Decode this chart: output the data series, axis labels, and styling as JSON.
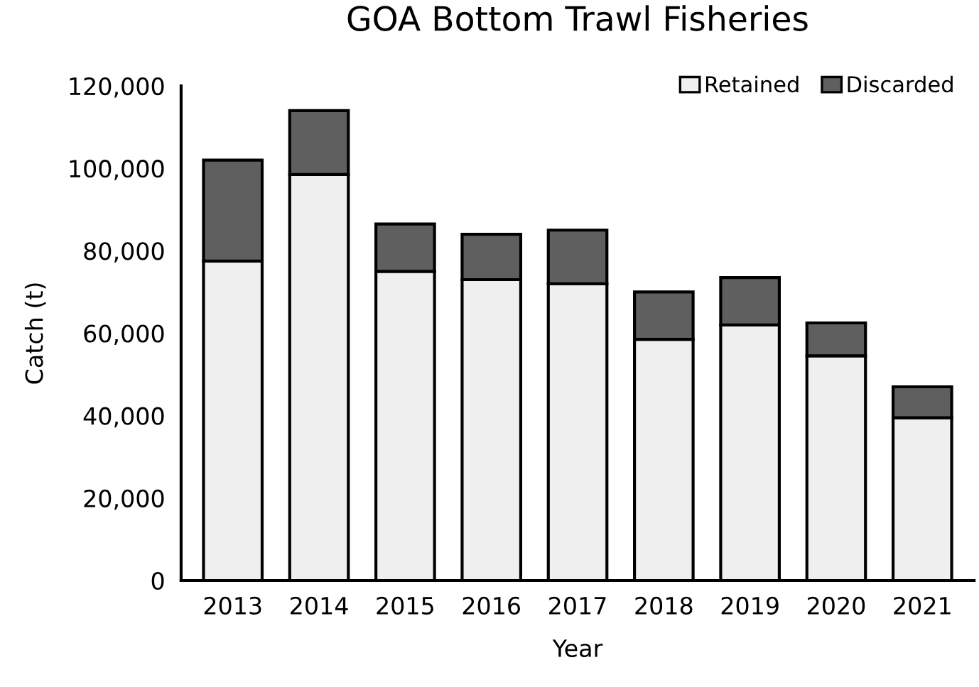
{
  "chart_data": {
    "type": "bar",
    "title": "GOA Bottom Trawl Fisheries",
    "xlabel": "Year",
    "ylabel": "Catch (t)",
    "categories": [
      "2013",
      "2014",
      "2015",
      "2016",
      "2017",
      "2018",
      "2019",
      "2020",
      "2021"
    ],
    "stacked": true,
    "series": [
      {
        "name": "Retained",
        "color": "#efefef",
        "values": [
          77500,
          98500,
          75000,
          73000,
          72000,
          58500,
          62000,
          54500,
          39500
        ]
      },
      {
        "name": "Discarded",
        "color": "#5f5f5f",
        "values": [
          24500,
          15500,
          11500,
          11000,
          13000,
          11500,
          11500,
          8000,
          7500
        ]
      }
    ],
    "ylim": [
      0,
      120000
    ],
    "yticks": [
      {
        "value": 0,
        "label": "0"
      },
      {
        "value": 20000,
        "label": "20,000"
      },
      {
        "value": 40000,
        "label": "40,000"
      },
      {
        "value": 60000,
        "label": "60,000"
      },
      {
        "value": 80000,
        "label": "80,000"
      },
      {
        "value": 100000,
        "label": "100,000"
      },
      {
        "value": 120000,
        "label": "120,000"
      }
    ],
    "grid": false,
    "legend": "top right"
  }
}
